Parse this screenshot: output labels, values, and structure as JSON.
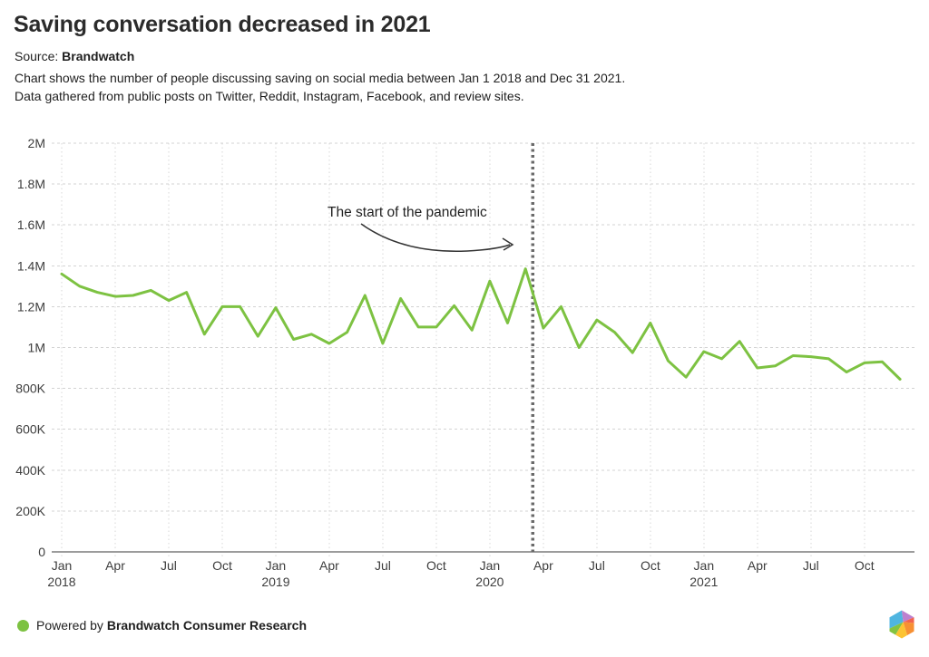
{
  "header": {
    "title": "Saving conversation decreased in 2021",
    "source_label": "Source:",
    "source_value": "Brandwatch",
    "description_line1": "Chart shows the number of people discussing saving on social media between Jan 1 2018 and Dec 31 2021.",
    "description_line2": "Data gathered from public posts on Twitter, Reddit, Instagram, Facebook, and review sites."
  },
  "chart_data": {
    "type": "line",
    "title": "Saving conversation decreased in 2021",
    "series_name": "People discussing saving on social media",
    "x_months": [
      "Jan 2018",
      "Feb 2018",
      "Mar 2018",
      "Apr 2018",
      "May 2018",
      "Jun 2018",
      "Jul 2018",
      "Aug 2018",
      "Sep 2018",
      "Oct 2018",
      "Nov 2018",
      "Dec 2018",
      "Jan 2019",
      "Feb 2019",
      "Mar 2019",
      "Apr 2019",
      "May 2019",
      "Jun 2019",
      "Jul 2019",
      "Aug 2019",
      "Sep 2019",
      "Oct 2019",
      "Nov 2019",
      "Dec 2019",
      "Jan 2020",
      "Feb 2020",
      "Mar 2020",
      "Apr 2020",
      "May 2020",
      "Jun 2020",
      "Jul 2020",
      "Aug 2020",
      "Sep 2020",
      "Oct 2020",
      "Nov 2020",
      "Dec 2020",
      "Jan 2021",
      "Feb 2021",
      "Mar 2021",
      "Apr 2021",
      "May 2021",
      "Jun 2021",
      "Jul 2021",
      "Aug 2021",
      "Sep 2021",
      "Oct 2021",
      "Nov 2021",
      "Dec 2021"
    ],
    "values": [
      1360000,
      1300000,
      1270000,
      1250000,
      1255000,
      1280000,
      1230000,
      1270000,
      1065000,
      1200000,
      1200000,
      1055000,
      1195000,
      1040000,
      1065000,
      1020000,
      1075000,
      1255000,
      1020000,
      1240000,
      1100000,
      1100000,
      1205000,
      1085000,
      1325000,
      1120000,
      1385000,
      1095000,
      1200000,
      1000000,
      1135000,
      1075000,
      975000,
      1120000,
      935000,
      855000,
      980000,
      945000,
      1030000,
      900000,
      910000,
      960000,
      955000,
      945000,
      880000,
      925000,
      930000,
      845000
    ],
    "ylim": [
      0,
      2000000
    ],
    "grid": true,
    "legend": false,
    "y_ticks": [
      {
        "value": 0,
        "label": "0"
      },
      {
        "value": 200000,
        "label": "200K"
      },
      {
        "value": 400000,
        "label": "400K"
      },
      {
        "value": 600000,
        "label": "600K"
      },
      {
        "value": 800000,
        "label": "800K"
      },
      {
        "value": 1000000,
        "label": "1M"
      },
      {
        "value": 1200000,
        "label": "1.2M"
      },
      {
        "value": 1400000,
        "label": "1.4M"
      },
      {
        "value": 1600000,
        "label": "1.6M"
      },
      {
        "value": 1800000,
        "label": "1.8M"
      },
      {
        "value": 2000000,
        "label": "2M"
      }
    ],
    "x_ticks": [
      {
        "i": 0,
        "month": "Jan",
        "year": "2018"
      },
      {
        "i": 3,
        "month": "Apr"
      },
      {
        "i": 6,
        "month": "Jul"
      },
      {
        "i": 9,
        "month": "Oct"
      },
      {
        "i": 12,
        "month": "Jan",
        "year": "2019"
      },
      {
        "i": 15,
        "month": "Apr"
      },
      {
        "i": 18,
        "month": "Jul"
      },
      {
        "i": 21,
        "month": "Oct"
      },
      {
        "i": 24,
        "month": "Jan",
        "year": "2020"
      },
      {
        "i": 27,
        "month": "Apr"
      },
      {
        "i": 30,
        "month": "Jul"
      },
      {
        "i": 33,
        "month": "Oct"
      },
      {
        "i": 36,
        "month": "Jan",
        "year": "2021"
      },
      {
        "i": 39,
        "month": "Apr"
      },
      {
        "i": 42,
        "month": "Jul"
      },
      {
        "i": 45,
        "month": "Oct"
      }
    ],
    "annotation": {
      "text": "The start of the pandemic",
      "event_month_index": 26.42
    },
    "line_color": "#7dc242",
    "grid_color": "#d3d3d3",
    "axis_color": "#9c9c9c",
    "event_line_color": "#6a6a6a",
    "label_color": "#3d3d3d"
  },
  "footer": {
    "powered_by_prefix": "Powered by",
    "brand_bold": "Brandwatch Consumer Research",
    "dot_color": "#7dc242"
  },
  "logo": {
    "colors": {
      "blue": "#4fb5e0",
      "purple": "#bd80ce",
      "red": "#f2634e",
      "orange": "#f79033",
      "yellow": "#fcc332",
      "green": "#84c341"
    }
  }
}
